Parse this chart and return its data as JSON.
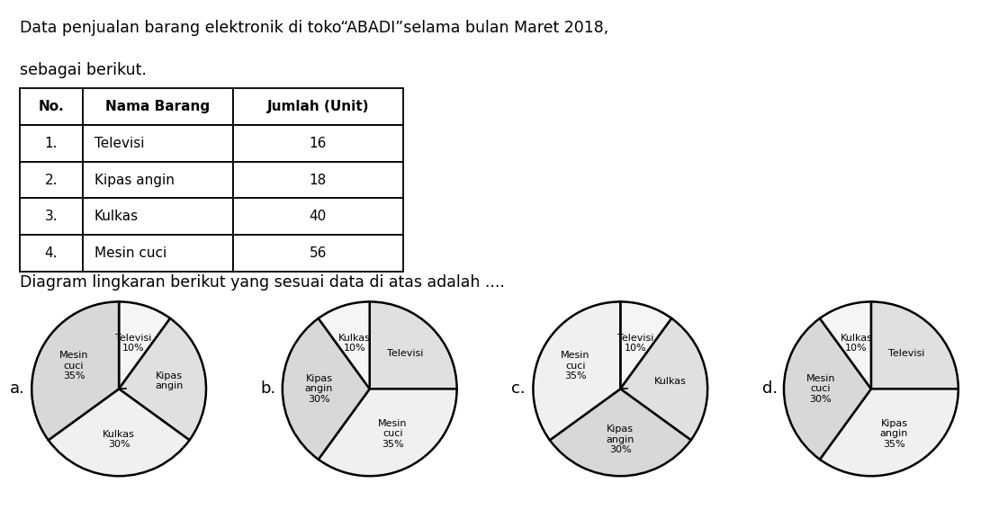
{
  "title_line1": "Data penjualan barang elektronik di toko“ABADI”selama bulan Maret 2018,",
  "title_line2": "sebagai berikut.",
  "table_headers": [
    "No.",
    "Nama Barang",
    "Jumlah (Unit)"
  ],
  "table_rows": [
    [
      "1.",
      "Televisi",
      "16"
    ],
    [
      "2.",
      "Kipas angin",
      "18"
    ],
    [
      "3.",
      "Kulkas",
      "40"
    ],
    [
      "4.",
      "Mesin cuci",
      "56"
    ]
  ],
  "subtitle": "Diagram lingkaran berikut yang sesuai data di atas adalah .... ",
  "charts": [
    {
      "label": "a.",
      "slices": [
        {
          "name": "Televisi\n10%",
          "pct": 10,
          "r": 0.55
        },
        {
          "name": "Kipas\nangin",
          "pct": 25,
          "r": 0.58
        },
        {
          "name": "Kulkas\n30%",
          "pct": 30,
          "r": 0.58
        },
        {
          "name": "Mesin\ncuci\n35%",
          "pct": 35,
          "r": 0.58
        }
      ],
      "colors": [
        "#f5f5f5",
        "#e0e0e0",
        "#f0f0f0",
        "#d8d8d8"
      ],
      "startangle": 90,
      "counterclock": false
    },
    {
      "label": "b.",
      "slices": [
        {
          "name": "Televisi",
          "pct": 25,
          "r": 0.58
        },
        {
          "name": "Mesin\ncuci\n35%",
          "pct": 35,
          "r": 0.58
        },
        {
          "name": "Kipas\nangin\n30%",
          "pct": 30,
          "r": 0.58
        },
        {
          "name": "Kulkas\n10%",
          "pct": 10,
          "r": 0.55
        }
      ],
      "colors": [
        "#e0e0e0",
        "#f0f0f0",
        "#d8d8d8",
        "#f5f5f5"
      ],
      "startangle": 90,
      "counterclock": false
    },
    {
      "label": "c.",
      "slices": [
        {
          "name": "Televisi\n10%",
          "pct": 10,
          "r": 0.55
        },
        {
          "name": "Kulkas",
          "pct": 25,
          "r": 0.58
        },
        {
          "name": "Kipas\nangin\n30%",
          "pct": 30,
          "r": 0.58
        },
        {
          "name": "Mesin\ncuci\n35%",
          "pct": 35,
          "r": 0.58
        }
      ],
      "colors": [
        "#f5f5f5",
        "#e0e0e0",
        "#d8d8d8",
        "#f0f0f0"
      ],
      "startangle": 90,
      "counterclock": false
    },
    {
      "label": "d.",
      "slices": [
        {
          "name": "Televisi",
          "pct": 25,
          "r": 0.58
        },
        {
          "name": "Kipas\nangin\n35%",
          "pct": 35,
          "r": 0.58
        },
        {
          "name": "Mesin\ncuci\n30%",
          "pct": 30,
          "r": 0.58
        },
        {
          "name": "Kulkas\n10%",
          "pct": 10,
          "r": 0.55
        }
      ],
      "colors": [
        "#e0e0e0",
        "#f0f0f0",
        "#d8d8d8",
        "#f5f5f5"
      ],
      "startangle": 90,
      "counterclock": false
    }
  ],
  "bg_color": "#ffffff",
  "text_color": "#000000",
  "pie_edge_color": "#000000",
  "pie_lw": 1.8,
  "font_size_title": 12.5,
  "font_size_table": 11,
  "font_size_pie": 8.0,
  "font_size_label": 13
}
